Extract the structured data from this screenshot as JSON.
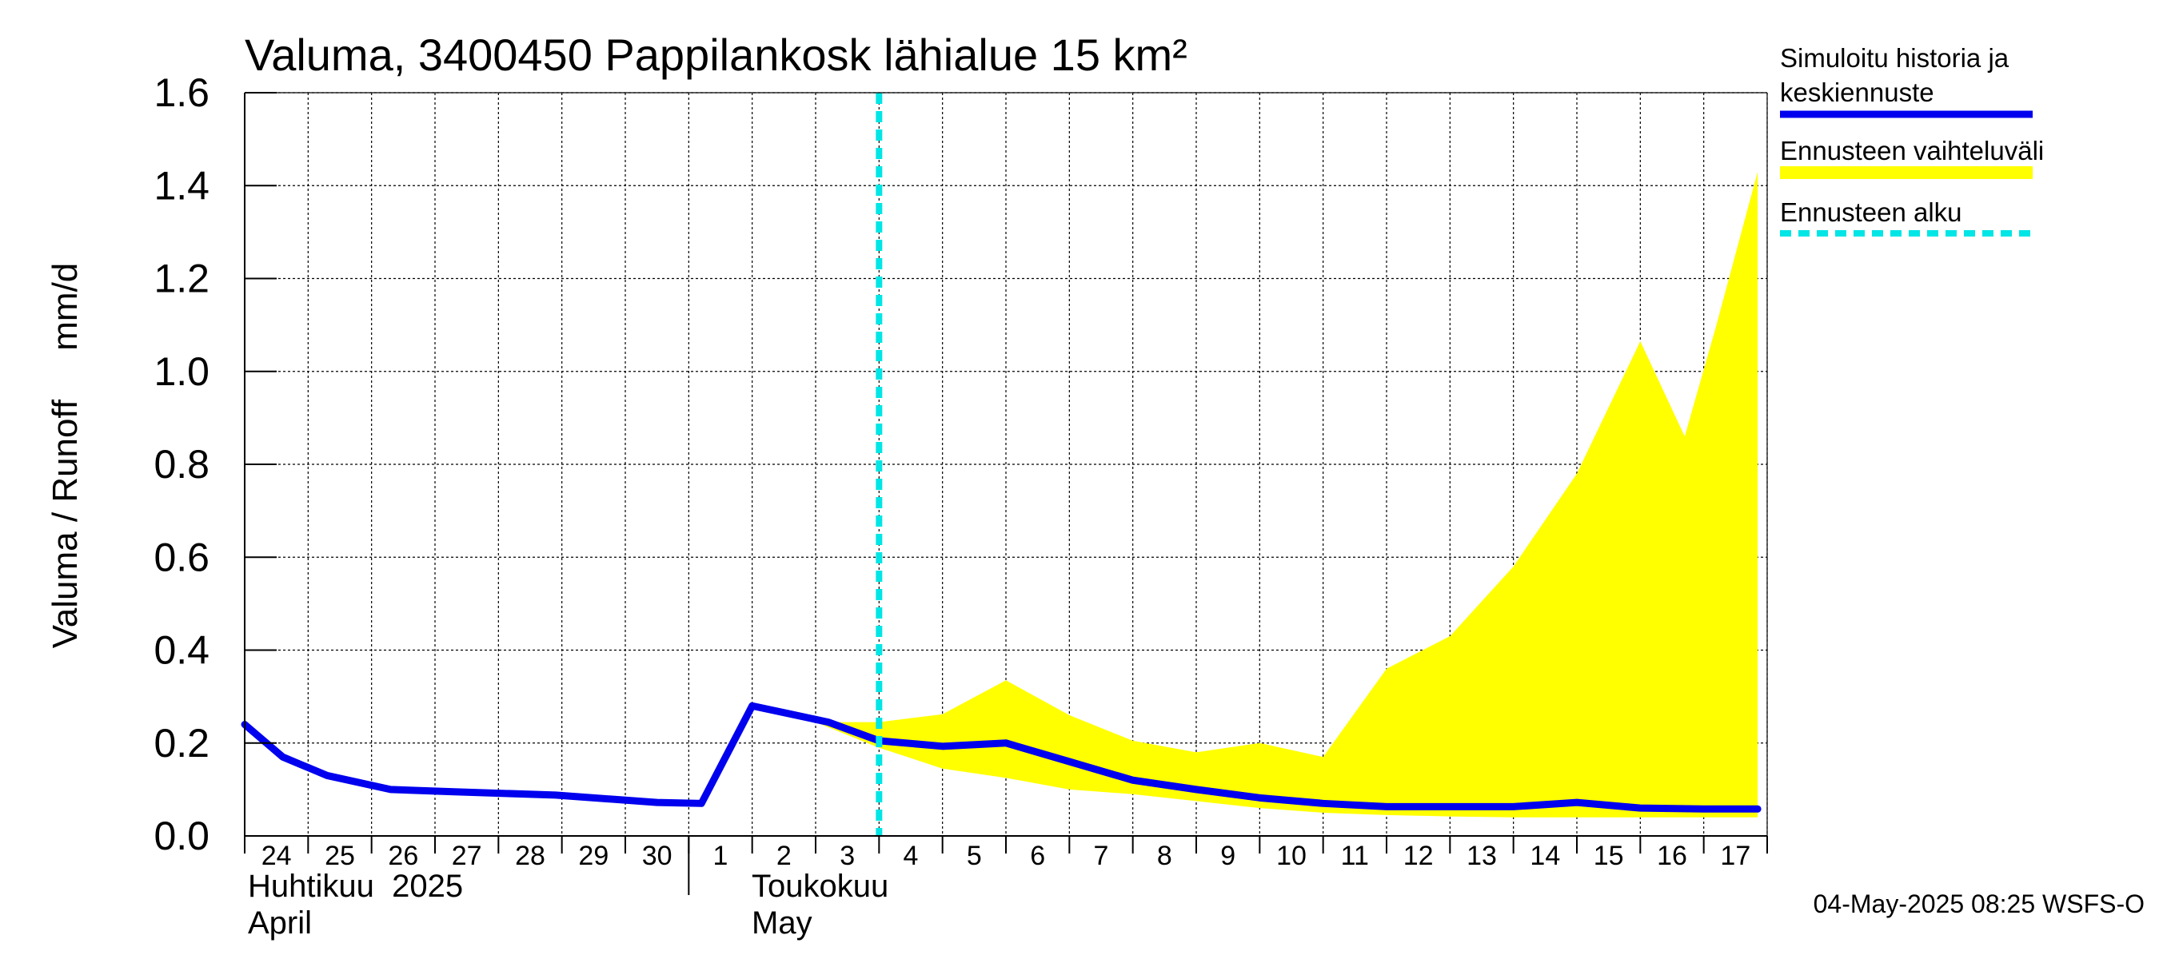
{
  "chart_data": {
    "type": "line",
    "title": "Valuma, 3400450 Pappilankosk lähialue 15 km²",
    "ylabel": "Valuma / Runoff     mm/d",
    "ylim": [
      0,
      1.6
    ],
    "yticks": [
      "0.0",
      "0.2",
      "0.4",
      "0.6",
      "0.8",
      "1.0",
      "1.2",
      "1.4",
      "1.6"
    ],
    "grid": true,
    "legend_position": "right",
    "x_tick_labels": [
      "24",
      "25",
      "26",
      "27",
      "28",
      "29",
      "30",
      "1",
      "2",
      "3",
      "4",
      "5",
      "6",
      "7",
      "8",
      "9",
      "10",
      "11",
      "12",
      "13",
      "14",
      "15",
      "16",
      "17"
    ],
    "months": [
      {
        "line1": "Huhtikuu  2025",
        "line2": "April",
        "start_index": 0
      },
      {
        "line1": "Toukokuu",
        "line2": "May",
        "start_index": 7.5
      }
    ],
    "forecast_start_index": 10,
    "series": [
      {
        "name": "Simuloitu historia ja keskiennuste",
        "color": "#0000ee",
        "x": [
          0,
          0.6,
          1.3,
          2.3,
          3.3,
          4.9,
          6.5,
          7.2,
          8.0,
          9.2,
          10.0,
          11.0,
          12.0,
          13.0,
          14.0,
          15.0,
          16.0,
          17.0,
          18.0,
          19.0,
          20.0,
          21.0,
          22.0,
          23.0,
          23.85
        ],
        "y": [
          0.24,
          0.17,
          0.13,
          0.1,
          0.095,
          0.088,
          0.072,
          0.07,
          0.28,
          0.245,
          0.205,
          0.193,
          0.2,
          0.16,
          0.12,
          0.1,
          0.082,
          0.07,
          0.063,
          0.063,
          0.063,
          0.072,
          0.06,
          0.058,
          0.058
        ]
      },
      {
        "name": "Ennusteen vaihteluväli",
        "color": "#ffff00",
        "x": [
          9.0,
          10.0,
          11.0,
          12.0,
          13.0,
          14.0,
          15.0,
          16.0,
          17.0,
          18.0,
          19.0,
          20.0,
          21.0,
          22.0,
          22.7,
          23.2,
          23.85
        ],
        "upper": [
          0.245,
          0.245,
          0.262,
          0.335,
          0.26,
          0.205,
          0.18,
          0.2,
          0.17,
          0.36,
          0.43,
          0.58,
          0.78,
          1.065,
          0.86,
          1.1,
          1.43
        ],
        "lower": [
          0.245,
          0.19,
          0.145,
          0.125,
          0.1,
          0.09,
          0.075,
          0.06,
          0.05,
          0.045,
          0.042,
          0.04,
          0.04,
          0.04,
          0.04,
          0.04,
          0.04
        ]
      },
      {
        "name": "Ennusteen alku",
        "color": "#00e5e5"
      }
    ]
  },
  "footer": {
    "timestamp": "04-May-2025 08:25 WSFS-O"
  }
}
